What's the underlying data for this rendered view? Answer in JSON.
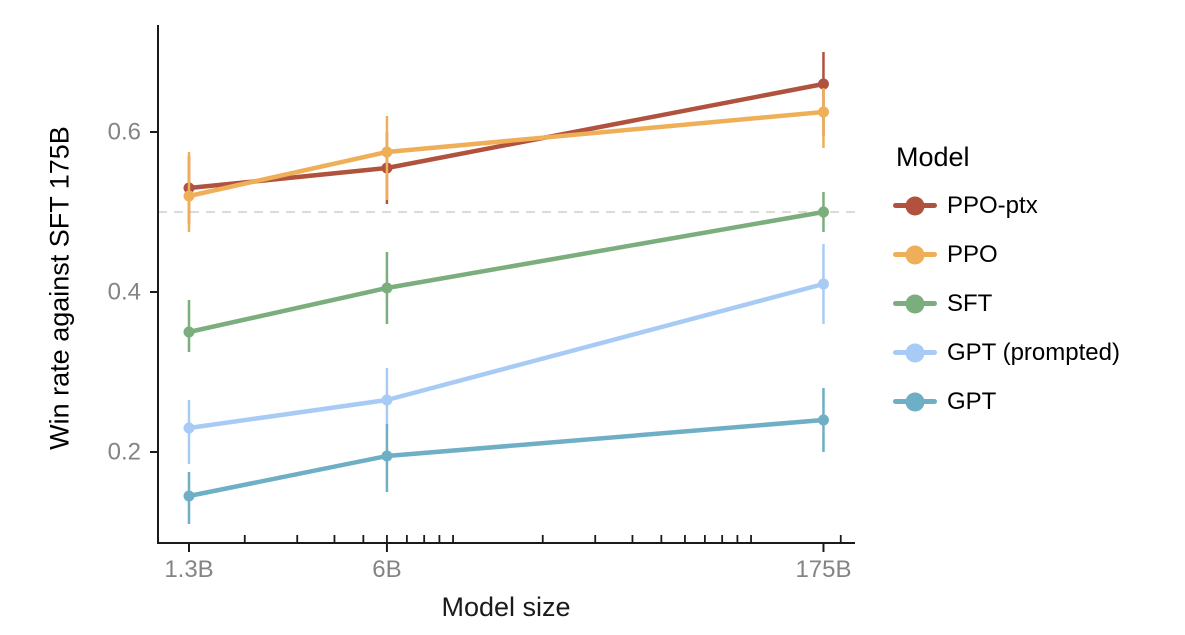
{
  "figure": {
    "legend_title": "Model"
  },
  "style": {
    "background": "#ffffff",
    "axis_color": "#1a1a1a",
    "tick_label_color": "#848484",
    "text_color": "#000000",
    "reference_line_color": "#dbdbdb"
  },
  "chart_data": {
    "type": "line",
    "title": "",
    "xlabel": "Model size",
    "ylabel": "Win rate against SFT 175B",
    "x_scale": "log",
    "grid": false,
    "x": [
      1.3,
      6,
      175
    ],
    "x_tick_labels": [
      "1.3B",
      "6B",
      "175B"
    ],
    "x_minor_ticks": [
      2,
      3,
      4,
      5,
      6,
      7,
      8,
      9,
      10,
      20,
      30,
      40,
      50,
      60,
      70,
      80,
      90,
      100,
      200
    ],
    "xlim": [
      1.02,
      224
    ],
    "y_ticks": [
      0.2,
      0.4,
      0.6
    ],
    "y_tick_labels": [
      "0.2",
      "0.4",
      "0.6"
    ],
    "ylim": [
      0.085,
      0.735
    ],
    "reference_line": {
      "y": 0.5,
      "style": "dashed"
    },
    "legend_title": "Model",
    "legend_position": "right",
    "series": [
      {
        "name": "PPO-ptx",
        "color": "#B1523E",
        "values": [
          0.53,
          0.555,
          0.66
        ],
        "error_bars": [
          [
            0.485,
            0.57
          ],
          [
            0.51,
            0.6
          ],
          [
            0.595,
            0.7
          ]
        ]
      },
      {
        "name": "PPO",
        "color": "#EEAF58",
        "values": [
          0.52,
          0.575,
          0.625
        ],
        "error_bars": [
          [
            0.475,
            0.575
          ],
          [
            0.515,
            0.62
          ],
          [
            0.58,
            0.655
          ]
        ]
      },
      {
        "name": "SFT",
        "color": "#7CAE7D",
        "values": [
          0.35,
          0.405,
          0.5
        ],
        "error_bars": [
          [
            0.325,
            0.39
          ],
          [
            0.36,
            0.45
          ],
          [
            0.475,
            0.525
          ]
        ]
      },
      {
        "name": "GPT (prompted)",
        "color": "#A8CBF5",
        "values": [
          0.23,
          0.265,
          0.41
        ],
        "error_bars": [
          [
            0.185,
            0.265
          ],
          [
            0.23,
            0.305
          ],
          [
            0.36,
            0.46
          ]
        ]
      },
      {
        "name": "GPT",
        "color": "#6FAFC5",
        "values": [
          0.145,
          0.195,
          0.24
        ],
        "error_bars": [
          [
            0.11,
            0.175
          ],
          [
            0.15,
            0.235
          ],
          [
            0.2,
            0.28
          ]
        ]
      }
    ]
  }
}
